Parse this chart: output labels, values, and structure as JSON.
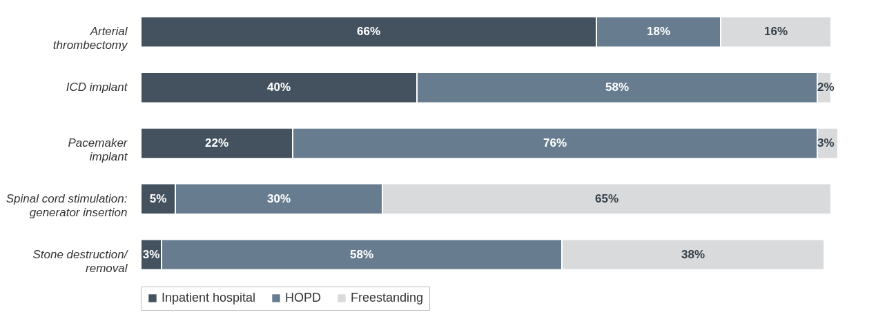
{
  "chart_data": {
    "type": "bar",
    "orientation": "horizontal",
    "stacked": true,
    "legend": "bottom",
    "tick_labels": "y",
    "grid": false,
    "categories": [
      "Arterial thrombectomy",
      "ICD implant",
      "Pacemaker implant",
      "Spinal cord stimulation: generator insertion",
      "Stone destruction/removal"
    ],
    "series": [
      {
        "name": "Inpatient hospital",
        "color": "#44525f",
        "values": [
          66,
          40,
          22,
          5,
          3
        ],
        "value_labels": [
          "66%",
          "40%",
          "22%",
          "5%",
          "3%"
        ]
      },
      {
        "name": "HOPD",
        "color": "#677d8f",
        "values": [
          18,
          58,
          76,
          30,
          58
        ],
        "value_labels": [
          "18%",
          "58%",
          "76%",
          "30%",
          "58%"
        ]
      },
      {
        "name": "Freestanding",
        "color": "#d9dadb",
        "values": [
          16,
          2,
          3,
          65,
          38
        ],
        "value_labels": [
          "16%",
          "2%",
          "3%",
          "65%",
          "38%"
        ]
      }
    ]
  }
}
